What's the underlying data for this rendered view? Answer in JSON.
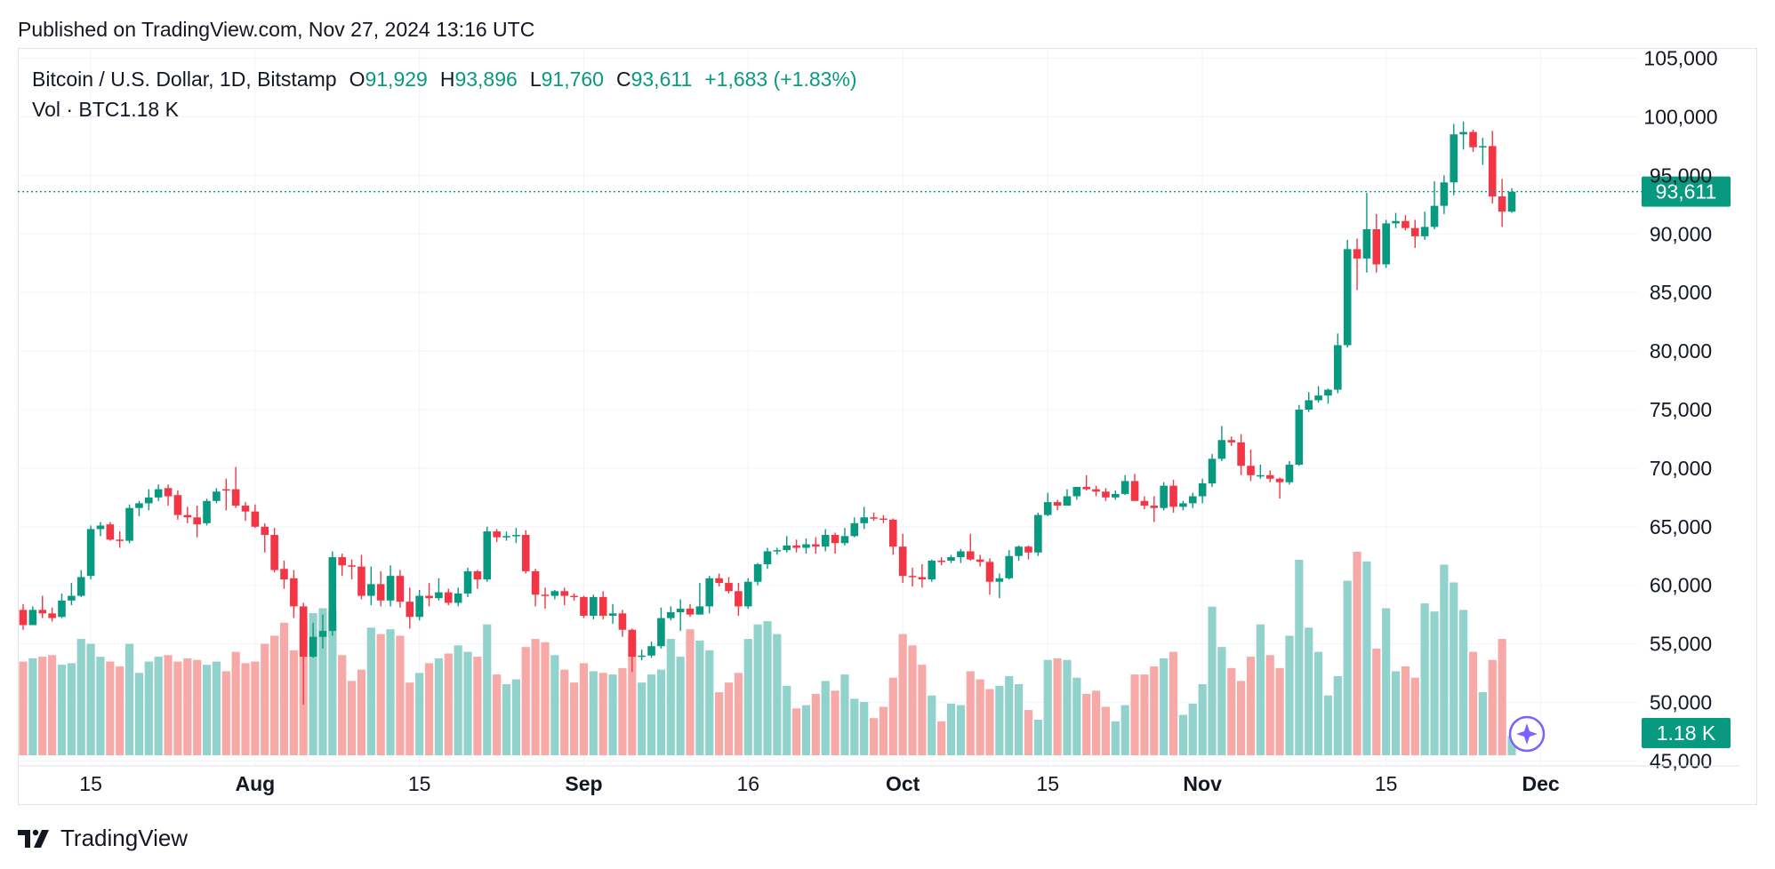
{
  "header": {
    "published_text": "Published on TradingView.com, Nov 27, 2024 13:16 UTC"
  },
  "legend": {
    "symbol": "Bitcoin / U.S. Dollar, 1D, Bitstamp",
    "open_label": "O",
    "open_value": "91,929",
    "high_label": "H",
    "high_value": "93,896",
    "low_label": "L",
    "low_value": "91,760",
    "close_label": "C",
    "close_value": "93,611",
    "change": "+1,683 (+1.83%)",
    "volume_label": "Vol · BTC",
    "volume_value": "1.18 K"
  },
  "colors": {
    "up": "#089981",
    "down": "#f23645",
    "up_vol": "#92d2cc",
    "down_vol": "#f7a9a7",
    "grid": "#f0f3fa",
    "axis_text": "#131722",
    "ai_icon": "#7b61ff"
  },
  "icons": {
    "brand_logo": "tradingview-logo-icon",
    "assistant": "sparkle-icon"
  },
  "brand": {
    "name": "TradingView"
  },
  "chart_data": {
    "type": "candlestick",
    "title": "Bitcoin / U.S. Dollar, 1D, Bitstamp",
    "price_axis": {
      "ticks": [
        "105,000",
        "100,000",
        "95,000",
        "90,000",
        "85,000",
        "80,000",
        "75,000",
        "70,000",
        "65,000",
        "60,000",
        "55,000",
        "50,000",
        "45,000"
      ],
      "range": [
        44500,
        105800
      ]
    },
    "time_axis": {
      "ticks": [
        {
          "label": "15",
          "index": 7
        },
        {
          "label": "Aug",
          "index": 24
        },
        {
          "label": "15",
          "index": 41
        },
        {
          "label": "Sep",
          "index": 58
        },
        {
          "label": "16",
          "index": 75
        },
        {
          "label": "Oct",
          "index": 91
        },
        {
          "label": "15",
          "index": 106
        },
        {
          "label": "Nov",
          "index": 122
        },
        {
          "label": "15",
          "index": 141
        },
        {
          "label": "Dec",
          "index": 157
        }
      ]
    },
    "last_price": {
      "label": "93,611",
      "value": 93611
    },
    "last_volume": {
      "label": "1.18 K",
      "value": 1.18
    },
    "volume_max": 11,
    "candles": [
      [
        57900,
        58400,
        56200,
        56600,
        5.8
      ],
      [
        56600,
        58200,
        56600,
        57900,
        6.0
      ],
      [
        57900,
        59100,
        57200,
        57600,
        6.1
      ],
      [
        57600,
        58100,
        56900,
        57200,
        6.2
      ],
      [
        57300,
        59300,
        57200,
        58700,
        5.6
      ],
      [
        58700,
        60200,
        58300,
        59100,
        5.7
      ],
      [
        59100,
        61300,
        59000,
        60700,
        7.2
      ],
      [
        60800,
        65100,
        60500,
        64800,
        6.9
      ],
      [
        64800,
        65400,
        64200,
        65100,
        6.1
      ],
      [
        65200,
        65400,
        63800,
        63900,
        5.8
      ],
      [
        63900,
        64600,
        63200,
        63800,
        5.5
      ],
      [
        63800,
        66900,
        63600,
        66600,
        6.9
      ],
      [
        66600,
        67200,
        65900,
        67000,
        5.1
      ],
      [
        67000,
        68200,
        66400,
        67500,
        5.8
      ],
      [
        67500,
        68600,
        67200,
        68200,
        6.1
      ],
      [
        68300,
        68600,
        66800,
        67600,
        6.2
      ],
      [
        67700,
        68100,
        65600,
        66000,
        5.8
      ],
      [
        66000,
        66700,
        65300,
        65800,
        6.0
      ],
      [
        65800,
        66800,
        64100,
        65200,
        5.9
      ],
      [
        65300,
        67400,
        65100,
        67200,
        5.6
      ],
      [
        67200,
        68300,
        67000,
        68000,
        5.8
      ],
      [
        68200,
        69100,
        66400,
        68100,
        5.2
      ],
      [
        68200,
        70100,
        66600,
        66800,
        6.4
      ],
      [
        66800,
        67100,
        65500,
        66300,
        5.7
      ],
      [
        66300,
        66900,
        64900,
        65000,
        5.8
      ],
      [
        65000,
        65300,
        62800,
        64300,
        6.9
      ],
      [
        64300,
        64900,
        61100,
        61300,
        7.4
      ],
      [
        61400,
        62100,
        59700,
        60500,
        8.2
      ],
      [
        60600,
        61300,
        57200,
        58200,
        6.5
      ],
      [
        58200,
        58500,
        49800,
        53900,
        8.5
      ],
      [
        53900,
        56800,
        53800,
        55600,
        8.8
      ],
      [
        55600,
        57500,
        54600,
        56100,
        9.1
      ],
      [
        56100,
        62900,
        55700,
        62400,
        9.0
      ],
      [
        62400,
        62700,
        60800,
        61700,
        6.2
      ],
      [
        61700,
        62200,
        60500,
        61600,
        4.6
      ],
      [
        61600,
        62600,
        58800,
        59100,
        5.3
      ],
      [
        59100,
        61600,
        58300,
        60100,
        7.9
      ],
      [
        60100,
        61200,
        58200,
        58700,
        7.5
      ],
      [
        58700,
        61700,
        58200,
        60800,
        7.8
      ],
      [
        60800,
        61300,
        58100,
        58600,
        7.4
      ],
      [
        58600,
        59800,
        56300,
        57300,
        4.5
      ],
      [
        57300,
        59600,
        57000,
        59100,
        5.1
      ],
      [
        59100,
        60200,
        58200,
        58900,
        5.7
      ],
      [
        58900,
        60600,
        58700,
        59400,
        6.0
      ],
      [
        59400,
        59700,
        58300,
        58500,
        6.3
      ],
      [
        58500,
        59800,
        58200,
        59300,
        6.8
      ],
      [
        59300,
        61500,
        59000,
        61200,
        6.4
      ],
      [
        61200,
        61300,
        59700,
        60500,
        6.1
      ],
      [
        60500,
        65000,
        60300,
        64600,
        8.1
      ],
      [
        64600,
        64800,
        63700,
        64100,
        5.0
      ],
      [
        64100,
        64600,
        63800,
        64200,
        4.4
      ],
      [
        64200,
        64900,
        63600,
        64300,
        4.7
      ],
      [
        64300,
        64700,
        61000,
        61200,
        6.7
      ],
      [
        61200,
        61400,
        58200,
        59200,
        7.2
      ],
      [
        59200,
        59800,
        58000,
        59100,
        7.0
      ],
      [
        59100,
        59600,
        58800,
        59500,
        6.2
      ],
      [
        59500,
        59800,
        58300,
        59100,
        5.3
      ],
      [
        59100,
        59300,
        58700,
        59000,
        4.5
      ],
      [
        59000,
        59100,
        57200,
        57400,
        5.7
      ],
      [
        57400,
        59200,
        57100,
        59000,
        5.2
      ],
      [
        59000,
        59500,
        57100,
        57400,
        5.1
      ],
      [
        57400,
        58400,
        56700,
        57600,
        5.0
      ],
      [
        57600,
        57900,
        55600,
        56200,
        5.4
      ],
      [
        56200,
        56300,
        52600,
        53900,
        7.5
      ],
      [
        53900,
        54500,
        53600,
        54000,
        4.5
      ],
      [
        54000,
        55200,
        53800,
        54800,
        5.0
      ],
      [
        54800,
        58100,
        54600,
        57200,
        5.3
      ],
      [
        57200,
        58200,
        57000,
        57700,
        7.2
      ],
      [
        57700,
        58800,
        56100,
        58000,
        6.1
      ],
      [
        58000,
        58400,
        57300,
        57500,
        7.8
      ],
      [
        57500,
        60200,
        57500,
        58200,
        7.1
      ],
      [
        58200,
        60800,
        57600,
        60600,
        6.5
      ],
      [
        60600,
        61000,
        59900,
        60200,
        3.9
      ],
      [
        60200,
        60700,
        59300,
        59500,
        4.5
      ],
      [
        59500,
        60200,
        57400,
        58200,
        5.1
      ],
      [
        58200,
        60600,
        58000,
        60300,
        7.2
      ],
      [
        60300,
        61900,
        60000,
        61800,
        8.1
      ],
      [
        61800,
        63200,
        61400,
        62900,
        8.3
      ],
      [
        62900,
        63200,
        62600,
        63000,
        7.5
      ],
      [
        63000,
        64200,
        62800,
        63400,
        4.3
      ],
      [
        63400,
        63900,
        62800,
        63200,
        2.9
      ],
      [
        63200,
        64000,
        62700,
        63500,
        3.1
      ],
      [
        63500,
        64100,
        62700,
        63300,
        3.8
      ],
      [
        63300,
        64800,
        62900,
        64300,
        4.6
      ],
      [
        64300,
        64500,
        62700,
        63600,
        4.0
      ],
      [
        63600,
        64900,
        63400,
        64200,
        5.0
      ],
      [
        64200,
        65800,
        64100,
        65300,
        3.5
      ],
      [
        65300,
        66700,
        64800,
        65800,
        3.3
      ],
      [
        65800,
        66200,
        65500,
        65700,
        2.3
      ],
      [
        65700,
        66000,
        65300,
        65600,
        3.0
      ],
      [
        65600,
        65700,
        62600,
        63300,
        4.8
      ],
      [
        63300,
        64400,
        60200,
        60800,
        7.5
      ],
      [
        60800,
        61500,
        59900,
        60700,
        6.8
      ],
      [
        60700,
        61800,
        59800,
        60500,
        5.6
      ],
      [
        60500,
        62200,
        60300,
        62100,
        3.7
      ],
      [
        62100,
        62400,
        61700,
        62000,
        2.1
      ],
      [
        62100,
        62600,
        61900,
        62400,
        3.2
      ],
      [
        62400,
        63100,
        61900,
        62900,
        3.1
      ],
      [
        62900,
        64400,
        62100,
        62200,
        5.2
      ],
      [
        62200,
        62600,
        61600,
        62000,
        4.7
      ],
      [
        62000,
        62300,
        59200,
        60300,
        4.1
      ],
      [
        60300,
        61000,
        58900,
        60600,
        4.3
      ],
      [
        60600,
        63000,
        60500,
        62500,
        4.9
      ],
      [
        62500,
        63400,
        62100,
        63300,
        4.4
      ],
      [
        63300,
        63400,
        62200,
        62800,
        2.8
      ],
      [
        62800,
        66200,
        62500,
        66000,
        2.2
      ],
      [
        66000,
        67900,
        65900,
        67100,
        5.9
      ],
      [
        67100,
        67300,
        66400,
        66800,
        6.0
      ],
      [
        66800,
        68200,
        66800,
        67600,
        5.9
      ],
      [
        67600,
        68400,
        67300,
        68400,
        4.8
      ],
      [
        68400,
        69400,
        68100,
        68200,
        3.8
      ],
      [
        68200,
        68500,
        67600,
        68000,
        4.0
      ],
      [
        68000,
        68300,
        67200,
        67500,
        3.0
      ],
      [
        67500,
        68100,
        67300,
        67800,
        2.1
      ],
      [
        67800,
        69400,
        67700,
        68900,
        3.1
      ],
      [
        68900,
        69500,
        67300,
        67200,
        5.0
      ],
      [
        67200,
        67600,
        66500,
        66800,
        5.0
      ],
      [
        66800,
        67600,
        65400,
        66600,
        5.5
      ],
      [
        66600,
        68800,
        66400,
        68500,
        6.0
      ],
      [
        68500,
        69000,
        66200,
        66700,
        6.4
      ],
      [
        66700,
        67200,
        66400,
        67000,
        2.5
      ],
      [
        67000,
        67900,
        66600,
        67600,
        3.2
      ],
      [
        67600,
        69100,
        67000,
        68700,
        4.4
      ],
      [
        68700,
        71200,
        68400,
        70800,
        9.2
      ],
      [
        70800,
        73600,
        70600,
        72400,
        6.7
      ],
      [
        72400,
        72700,
        71900,
        72200,
        5.4
      ],
      [
        72200,
        72900,
        69400,
        70200,
        4.6
      ],
      [
        70200,
        71600,
        68900,
        69400,
        6.1
      ],
      [
        69400,
        70300,
        69100,
        69400,
        8.1
      ],
      [
        69400,
        69800,
        68800,
        69100,
        6.2
      ],
      [
        69100,
        69200,
        67400,
        68800,
        5.4
      ],
      [
        68800,
        70600,
        68600,
        70300,
        7.4
      ],
      [
        70300,
        75400,
        70200,
        75000,
        12.1
      ],
      [
        75000,
        76500,
        74800,
        75800,
        7.9
      ],
      [
        75800,
        77000,
        75600,
        76200,
        6.4
      ],
      [
        76200,
        76800,
        75500,
        76700,
        3.7
      ],
      [
        76700,
        81500,
        76400,
        80500,
        4.9
      ],
      [
        80500,
        89500,
        80300,
        88700,
        10.8
      ],
      [
        88700,
        89600,
        85200,
        87900,
        12.6
      ],
      [
        87900,
        93500,
        86700,
        90400,
        12.0
      ],
      [
        90400,
        91700,
        86700,
        87400,
        6.6
      ],
      [
        87400,
        91200,
        87100,
        90900,
        9.1
      ],
      [
        90900,
        91800,
        90500,
        91100,
        5.2
      ],
      [
        91100,
        91600,
        90300,
        90500,
        5.5
      ],
      [
        90500,
        91200,
        88800,
        89800,
        4.8
      ],
      [
        89800,
        91900,
        89500,
        90600,
        9.4
      ],
      [
        90600,
        94500,
        90400,
        92400,
        8.9
      ],
      [
        92400,
        95000,
        91700,
        94400,
        11.8
      ],
      [
        94400,
        99400,
        93300,
        98500,
        10.7
      ],
      [
        98500,
        99600,
        97200,
        98700,
        9.0
      ],
      [
        98700,
        98900,
        97000,
        97400,
        6.4
      ],
      [
        97400,
        98200,
        95900,
        97500,
        3.9
      ],
      [
        97500,
        98800,
        92600,
        93200,
        5.9
      ],
      [
        93200,
        94700,
        90600,
        91900,
        7.2
      ],
      [
        91900,
        93900,
        91800,
        93600,
        1.2
      ]
    ]
  }
}
